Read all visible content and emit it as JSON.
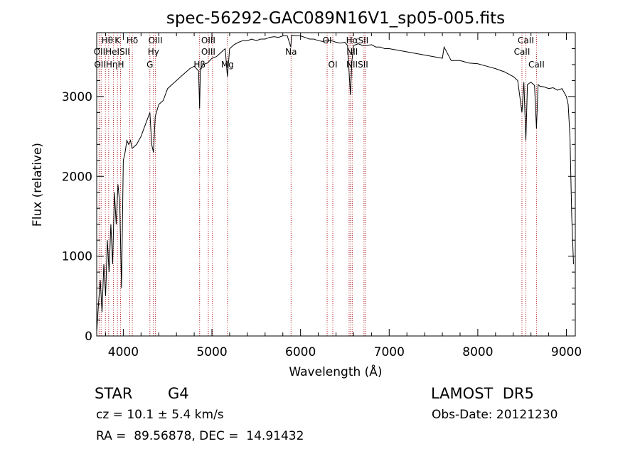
{
  "chart_data": {
    "type": "line",
    "title": "spec-56292-GAC089N16V1_sp05-005.fits",
    "xlabel": "Wavelength (Å)",
    "ylabel": "Flux (relative)",
    "xlim": [
      3700,
      9100
    ],
    "ylim": [
      0,
      3800
    ],
    "xticks": [
      4000,
      5000,
      6000,
      7000,
      8000,
      9000
    ],
    "yticks": [
      0,
      1000,
      2000,
      3000
    ],
    "grid": false,
    "series": [
      {
        "x": [
          3700,
          3720,
          3740,
          3760,
          3780,
          3800,
          3820,
          3840,
          3860,
          3880,
          3900,
          3920,
          3940,
          3960,
          3980,
          4000,
          4020,
          4040,
          4060,
          4080,
          4100,
          4150,
          4200,
          4250,
          4300,
          4320,
          4340,
          4360,
          4400,
          4450,
          4500,
          4550,
          4600,
          4650,
          4700,
          4750,
          4800,
          4850,
          4861,
          4870,
          4900,
          4950,
          5000,
          5050,
          5100,
          5150,
          5175,
          5200,
          5250,
          5300,
          5350,
          5400,
          5450,
          5500,
          5550,
          5600,
          5650,
          5700,
          5750,
          5800,
          5850,
          5890,
          5900,
          5950,
          6000,
          6050,
          6100,
          6150,
          6200,
          6250,
          6300,
          6350,
          6400,
          6450,
          6500,
          6530,
          6563,
          6580,
          6600,
          6650,
          6700,
          6750,
          6800,
          6850,
          6900,
          6950,
          7000,
          7100,
          7200,
          7300,
          7400,
          7500,
          7600,
          7620,
          7700,
          7800,
          7900,
          8000,
          8100,
          8200,
          8300,
          8400,
          8450,
          8498,
          8520,
          8542,
          8560,
          8600,
          8640,
          8662,
          8680,
          8700,
          8750,
          8800,
          8850,
          8900,
          8950,
          9000,
          9020,
          9040,
          9060,
          9080
        ],
        "values": [
          50,
          400,
          700,
          300,
          900,
          500,
          1200,
          800,
          1400,
          900,
          1800,
          1400,
          1900,
          1650,
          600,
          2200,
          2300,
          2450,
          2400,
          2450,
          2350,
          2400,
          2500,
          2650,
          2800,
          2400,
          2300,
          2750,
          2900,
          2950,
          3100,
          3150,
          3200,
          3250,
          3300,
          3350,
          3380,
          3320,
          2850,
          3350,
          3400,
          3420,
          3480,
          3500,
          3550,
          3600,
          3250,
          3600,
          3650,
          3680,
          3700,
          3700,
          3720,
          3700,
          3720,
          3720,
          3740,
          3750,
          3740,
          3760,
          3760,
          3620,
          3770,
          3760,
          3760,
          3740,
          3720,
          3720,
          3700,
          3690,
          3700,
          3700,
          3680,
          3670,
          3680,
          3640,
          3020,
          3450,
          3640,
          3660,
          3640,
          3640,
          3650,
          3620,
          3620,
          3600,
          3600,
          3580,
          3560,
          3540,
          3520,
          3500,
          3480,
          3620,
          3450,
          3450,
          3420,
          3410,
          3380,
          3350,
          3310,
          3250,
          3200,
          2800,
          3180,
          2450,
          3150,
          3180,
          3140,
          2600,
          3150,
          3130,
          3120,
          3100,
          3110,
          3080,
          3100,
          3000,
          2900,
          2500,
          1500,
          900
        ]
      }
    ],
    "lines": [
      {
        "x": 3727,
        "labels": [
          "OII"
        ]
      },
      {
        "x": 3750,
        "labels": [
          "OII"
        ]
      },
      {
        "x": 3798,
        "labels": [
          "Hη"
        ]
      },
      {
        "x": 3835,
        "labels": [
          "Hθ"
        ]
      },
      {
        "x": 3889,
        "labels": [
          "HeI"
        ]
      },
      {
        "x": 3934,
        "labels": [
          "K"
        ]
      },
      {
        "x": 3969,
        "labels": [
          "H"
        ]
      },
      {
        "x": 4072,
        "labels": [
          "SII"
        ]
      },
      {
        "x": 4102,
        "labels": [
          "Hδ"
        ]
      },
      {
        "x": 4300,
        "labels": [
          "G"
        ]
      },
      {
        "x": 4340,
        "labels": [
          "Hγ"
        ]
      },
      {
        "x": 4363,
        "labels": [
          "OIII"
        ]
      },
      {
        "x": 4861,
        "labels": [
          "Hβ"
        ]
      },
      {
        "x": 4959,
        "labels": [
          "OIII"
        ]
      },
      {
        "x": 5007,
        "labels": [
          "OIII"
        ]
      },
      {
        "x": 5175,
        "labels": [
          "Mg"
        ]
      },
      {
        "x": 5893,
        "labels": [
          "Na"
        ]
      },
      {
        "x": 6300,
        "labels": [
          "OI"
        ]
      },
      {
        "x": 6364,
        "labels": [
          "OI"
        ]
      },
      {
        "x": 6548,
        "labels": [
          "NII"
        ]
      },
      {
        "x": 6563,
        "labels": [
          "Hα"
        ]
      },
      {
        "x": 6583,
        "labels": [
          "NII"
        ]
      },
      {
        "x": 6716,
        "labels": [
          "SII"
        ]
      },
      {
        "x": 6731,
        "labels": [
          "SII"
        ]
      },
      {
        "x": 8498,
        "labels": [
          "CaII"
        ]
      },
      {
        "x": 8542,
        "labels": [
          "CaII"
        ]
      },
      {
        "x": 8662,
        "labels": [
          "CaII"
        ]
      }
    ],
    "line_label_text": [
      {
        "text": "Hθ",
        "row": 1,
        "at": 3820
      },
      {
        "text": "K",
        "row": 1,
        "at": 3934
      },
      {
        "text": "Hδ",
        "row": 1,
        "at": 4102
      },
      {
        "text": "OIII",
        "row": 1,
        "at": 4363
      },
      {
        "text": "OIII",
        "row": 1,
        "at": 4959
      },
      {
        "text": "OI",
        "row": 1,
        "at": 6300
      },
      {
        "text": "HαSII",
        "row": 1,
        "at": 6640
      },
      {
        "text": "CaII",
        "row": 1,
        "at": 8542
      },
      {
        "text": "OIIHeISII",
        "row": 2,
        "at": 3870
      },
      {
        "text": "Hγ",
        "row": 2,
        "at": 4340
      },
      {
        "text": "OIII",
        "row": 2,
        "at": 4959
      },
      {
        "text": "Na",
        "row": 2,
        "at": 5893
      },
      {
        "text": "NII",
        "row": 2,
        "at": 6583
      },
      {
        "text": "CaII",
        "row": 2,
        "at": 8498
      },
      {
        "text": "OIIHηH",
        "row": 3,
        "at": 3840
      },
      {
        "text": "G",
        "row": 3,
        "at": 4300
      },
      {
        "text": "Hβ",
        "row": 3,
        "at": 4861
      },
      {
        "text": "Mg",
        "row": 3,
        "at": 5175
      },
      {
        "text": "OI",
        "row": 3,
        "at": 6364
      },
      {
        "text": "NIISII",
        "row": 3,
        "at": 6640
      },
      {
        "text": "CaII",
        "row": 3,
        "at": 8662
      }
    ]
  },
  "info": {
    "object_type": "STAR",
    "subclass": "G4",
    "survey": "LAMOST  DR5",
    "cz": "cz = 10.1 ± 5.4 km/s",
    "obs_date": "Obs-Date: 20121230",
    "radec": "RA =  89.56878, DEC =  14.91432"
  },
  "colors": {
    "spectrum": "#000000",
    "line_markers": "#b22222",
    "background": "#ffffff"
  }
}
